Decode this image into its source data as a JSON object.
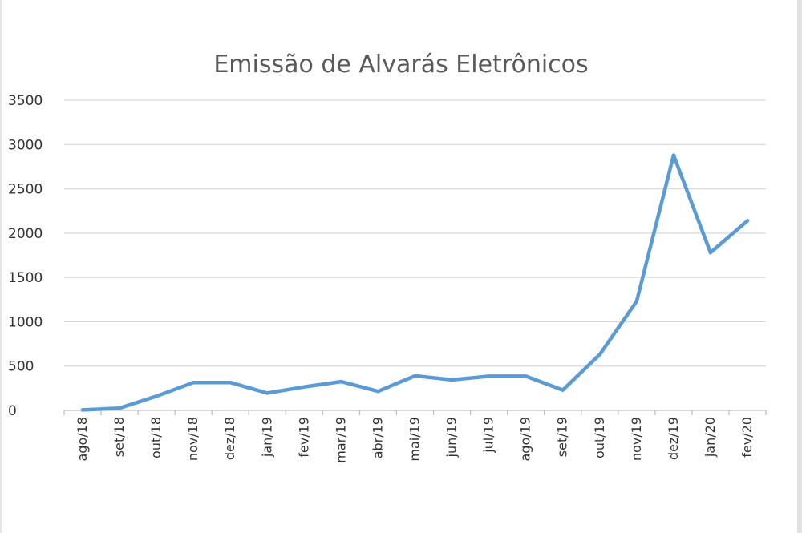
{
  "chart_data": {
    "type": "line",
    "title": "Emissão de Alvarás Eletrônicos",
    "xlabel": "",
    "ylabel": "",
    "categories": [
      "ago/18",
      "set/18",
      "out/18",
      "nov/18",
      "dez/18",
      "jan/19",
      "fev/19",
      "mar/19",
      "abr/19",
      "mai/19",
      "jun/19",
      "jul/19",
      "ago/19",
      "set/19",
      "out/19",
      "nov/19",
      "dez/19",
      "jan/20",
      "fev/20"
    ],
    "series": [
      {
        "values": [
          5,
          25,
          160,
          315,
          315,
          195,
          265,
          325,
          215,
          390,
          345,
          385,
          385,
          230,
          630,
          1230,
          2880,
          1780,
          2140
        ]
      }
    ],
    "ylim": [
      0,
      3500
    ],
    "yticks": [
      0,
      500,
      1000,
      1500,
      2000,
      2500,
      3000,
      3500
    ],
    "grid": true,
    "legend": "none",
    "colors": {
      "series": "#5b9bd5"
    }
  }
}
